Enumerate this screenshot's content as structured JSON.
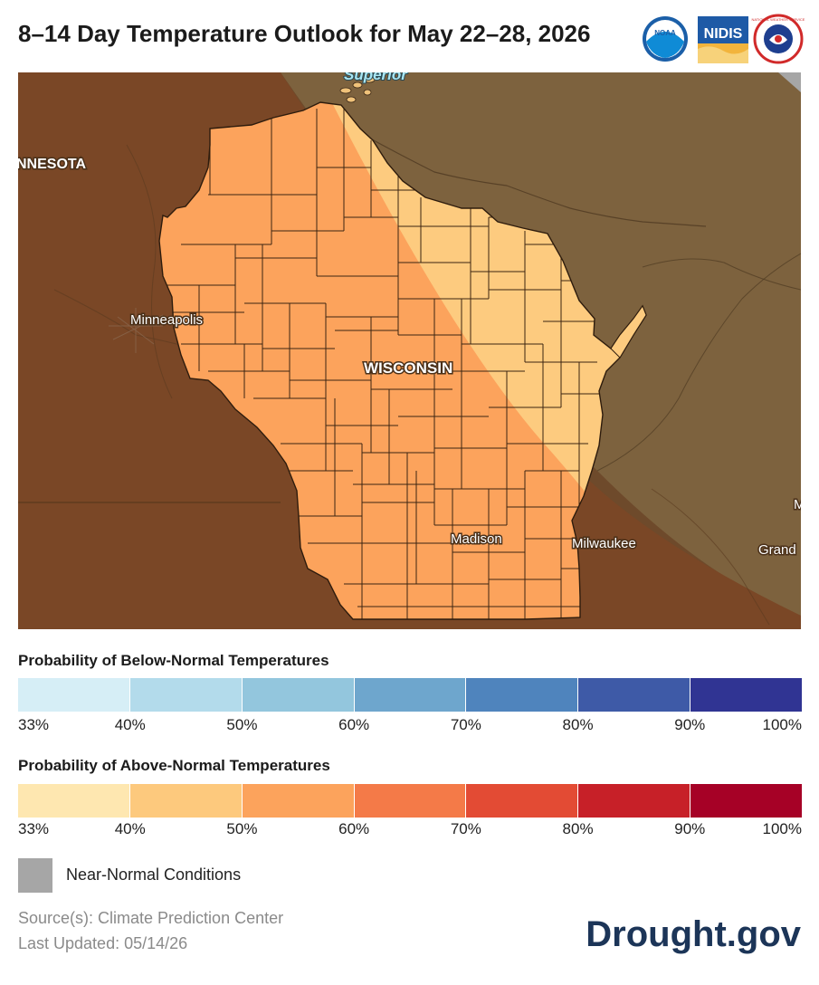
{
  "title": "8–14 Day Temperature Outlook for May 22–28, 2026",
  "logos": {
    "noaa": "NOAA",
    "nidis": "NIDIS",
    "nws": "NATIONAL WEATHER SERVICE"
  },
  "map": {
    "labels": {
      "minnesota": "NNESOTA",
      "superior": "Superior",
      "minneapolis": "Minneapolis",
      "wisconsin": "WISCONSIN",
      "madison": "Madison",
      "milwaukee": "Milwaukee",
      "grand": "Grand",
      "michigan_edge": "M"
    },
    "categories": [
      {
        "category": "above-normal",
        "range": "33–40%",
        "color": "#fee5ad"
      },
      {
        "category": "above-normal",
        "range": "40–50%",
        "color": "#fdcb7f"
      },
      {
        "category": "above-normal",
        "range": "50–60%",
        "color": "#fca35c"
      }
    ],
    "colors": {
      "background": "#6e4a2b",
      "band_33_40": "#7e613c",
      "band_50_60": "#7d4a25"
    }
  },
  "below_legend": {
    "title": "Probability of Below-Normal Temperatures",
    "colors": [
      "#d6eef6",
      "#b3dbeb",
      "#93c6dd",
      "#6ea6cd",
      "#4f84bd",
      "#3e5aa7",
      "#303493"
    ],
    "ticks": [
      "33%",
      "40%",
      "50%",
      "60%",
      "70%",
      "80%",
      "90%",
      "100%"
    ]
  },
  "above_legend": {
    "title": "Probability of Above-Normal Temperatures",
    "colors": [
      "#fee7b0",
      "#fdc97d",
      "#fca35c",
      "#f47a48",
      "#e34b34",
      "#c72028",
      "#a60126"
    ],
    "ticks": [
      "33%",
      "40%",
      "50%",
      "60%",
      "70%",
      "80%",
      "90%",
      "100%"
    ]
  },
  "near_normal": {
    "label": "Near-Normal Conditions",
    "color": "#a6a6a6"
  },
  "footer": {
    "source": "Source(s): Climate Prediction Center",
    "updated": "Last Updated: 05/14/26",
    "brand": "Drought.gov"
  }
}
